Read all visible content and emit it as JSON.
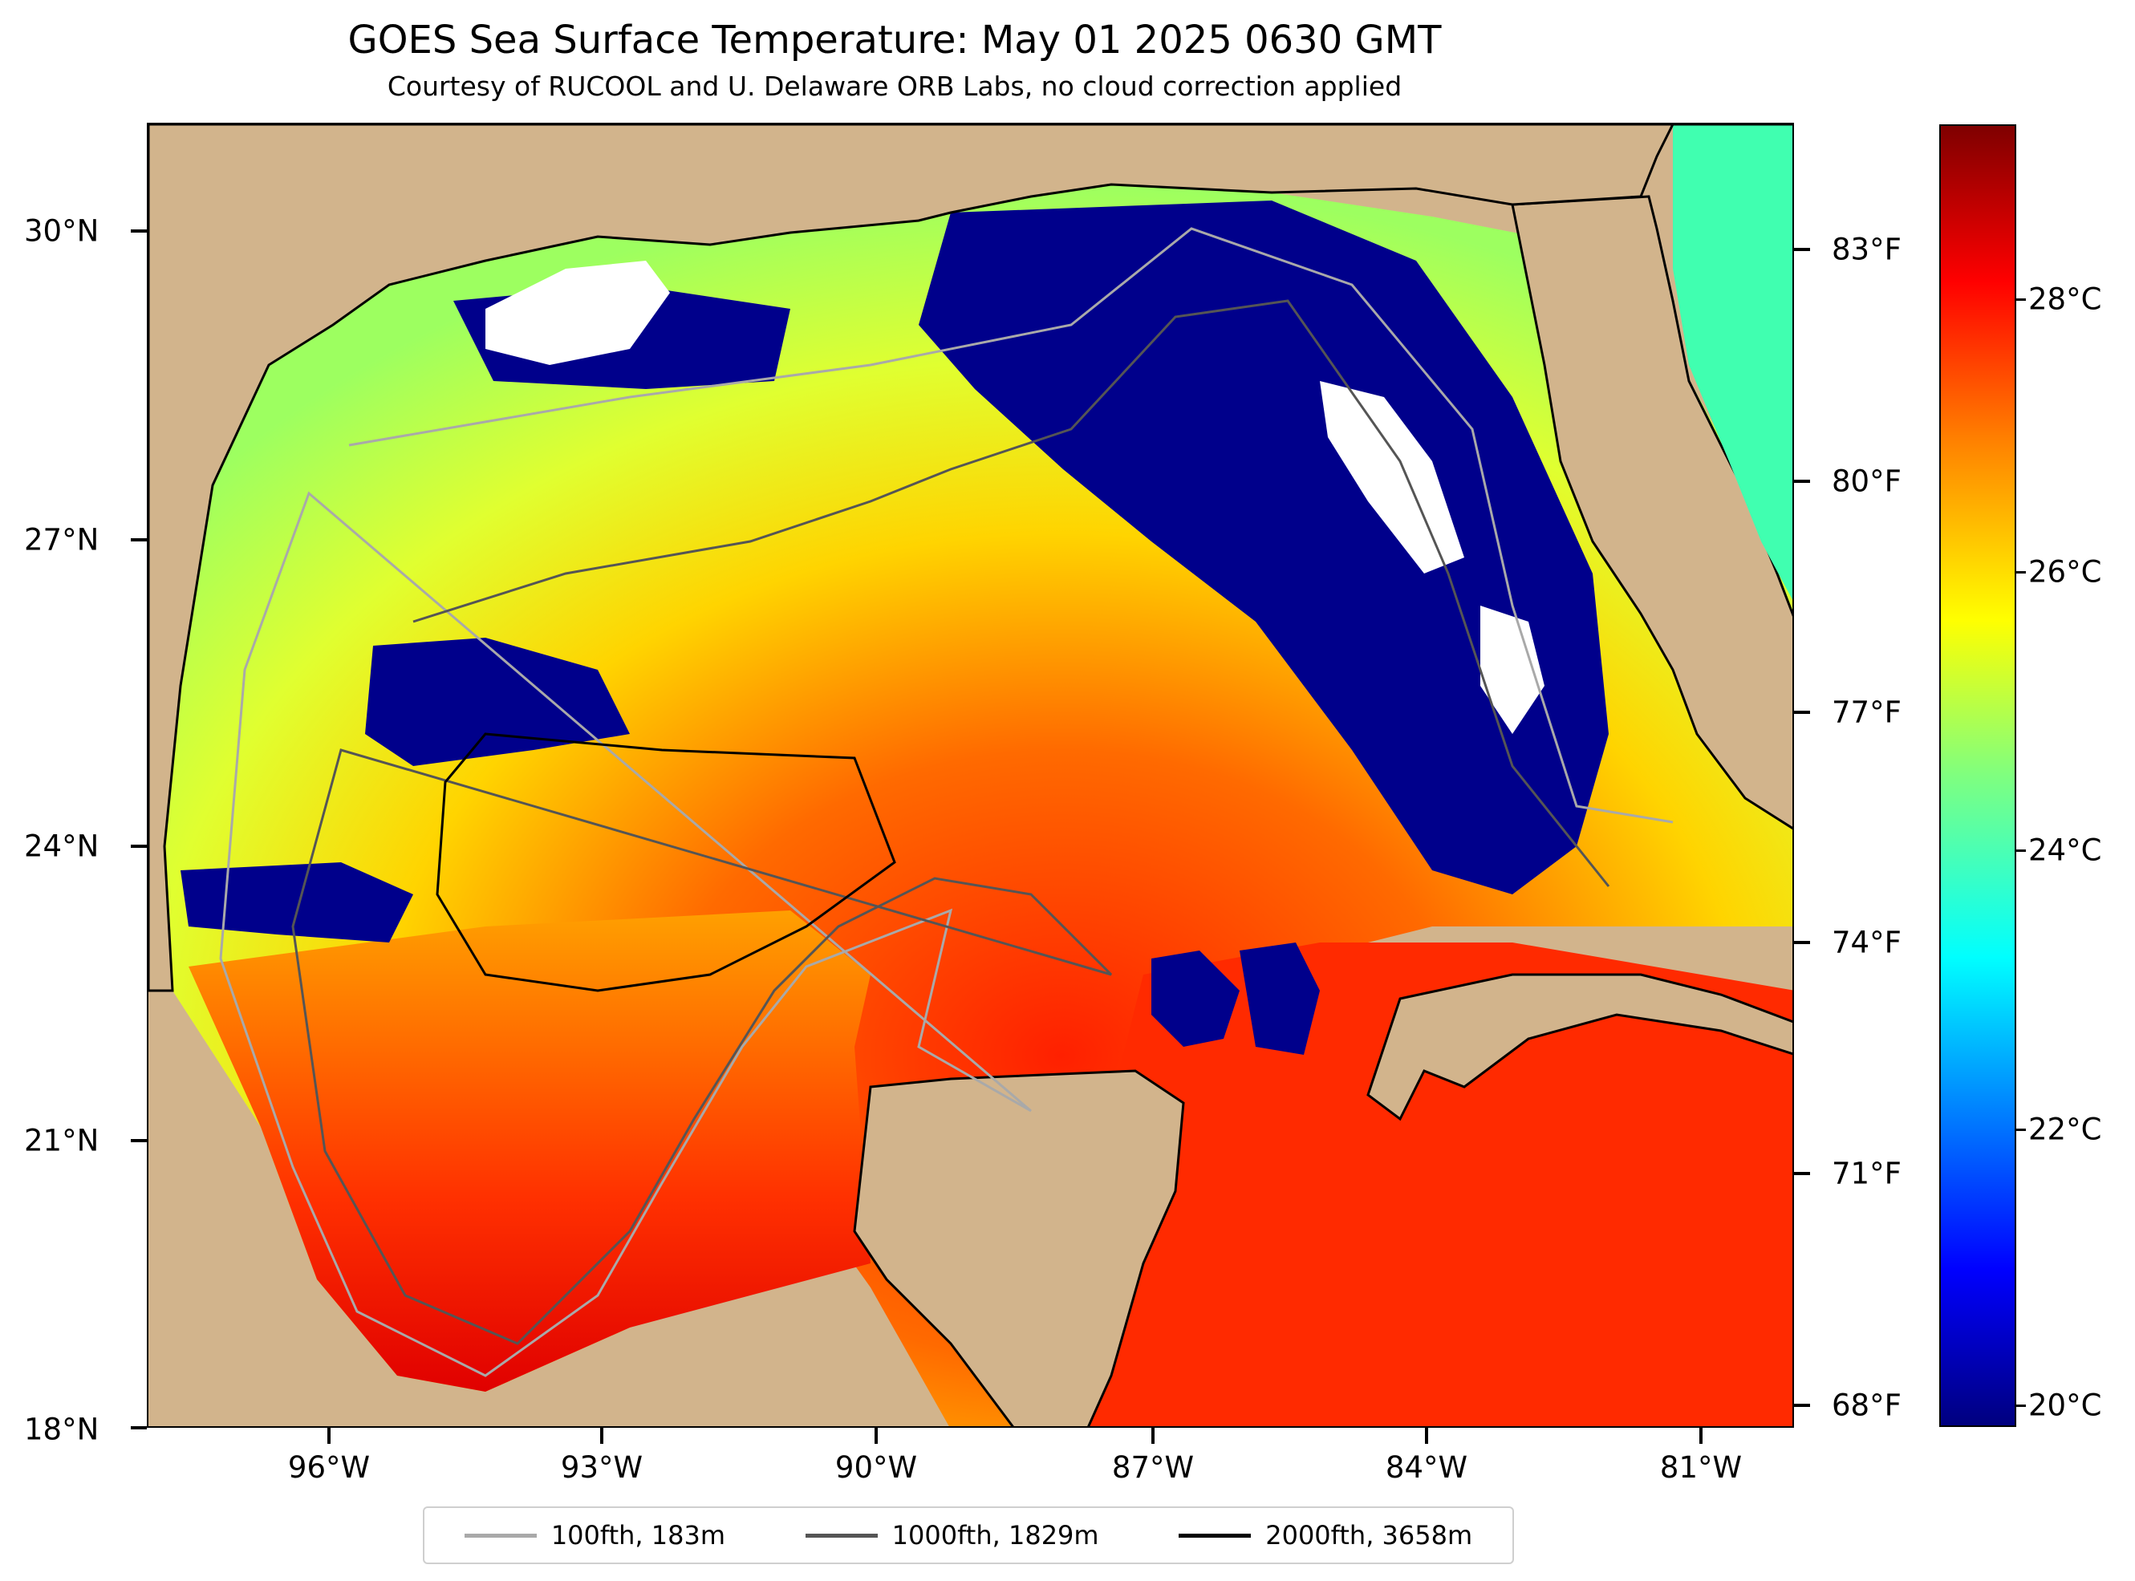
{
  "title": "GOES Sea Surface Temperature: May 01 2025 0630 GMT",
  "subtitle": "Courtesy of RUCOOL and U. Delaware ORB Labs, no cloud correction applied",
  "lat_labels": [
    "30°N",
    "27°N",
    "24°N",
    "21°N",
    "18°N"
  ],
  "lon_labels": [
    "96°W",
    "93°W",
    "90°W",
    "87°W",
    "84°W",
    "81°W"
  ],
  "fahrenheit_labels": [
    "83°F",
    "80°F",
    "77°F",
    "74°F",
    "71°F",
    "68°F"
  ],
  "colorbar_labels": [
    "28°C",
    "26°C",
    "24°C",
    "22°C",
    "20°C"
  ],
  "colorbar_range_c": [
    19.7,
    29.2
  ],
  "legend": [
    {
      "label": "100fth, 183m",
      "color": "#a9a9a9"
    },
    {
      "label": "1000fth, 1829m",
      "color": "#555555"
    },
    {
      "label": "2000fth, 3658m",
      "color": "#000000"
    }
  ],
  "colors": {
    "land": "#d2b48c",
    "cloud_mask": "#ffffff",
    "cold": "#00008b"
  }
}
